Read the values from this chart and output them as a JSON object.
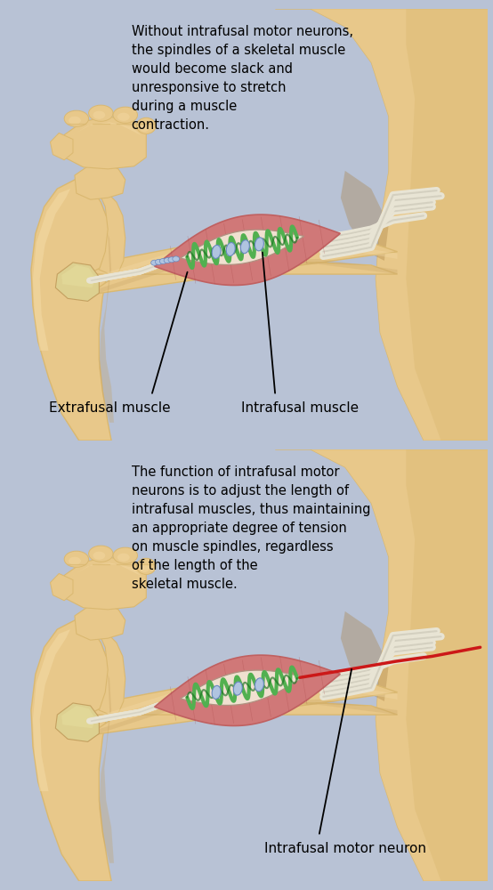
{
  "panel_bg": "#c8cfe0",
  "outer_bg": "#b8c2d5",
  "skin_base": "#e8c88a",
  "skin_mid": "#dab870",
  "skin_dark": "#c4a060",
  "skin_shadow": "#a88040",
  "skin_light": "#f5dca8",
  "bone_color": "#ddd090",
  "muscle_base": "#d07878",
  "muscle_mid": "#c06060",
  "muscle_light": "#e09898",
  "muscle_dark": "#a84848",
  "tendon_white": "#e8e4d4",
  "tendon_gray": "#c8c4b4",
  "spindle_capsule": "#f0e0d0",
  "spindle_green": "#52b050",
  "spindle_green_dk": "#1a7020",
  "spindle_blue_lt": "#b0c4e0",
  "spindle_blue": "#6888c0",
  "nerve_red": "#cc1818",
  "text1": "Without intrafusal motor neurons,\nthe spindles of a skeletal muscle\nwould become slack and\nunresponsive to stretch\nduring a muscle\ncontraction.",
  "text2": "The function of intrafusal motor\nneurons is to adjust the length of\nintrafusal muscles, thus maintaining\nan appropriate degree of tension\non muscle spindles, regardless\nof the length of the\nskeletal muscle.",
  "lbl_extra": "Extrafusal muscle",
  "lbl_intra": "Intrafusal muscle",
  "lbl_neuron": "Intrafusal motor neuron",
  "fs_text": 10.5,
  "fs_label": 11.0
}
